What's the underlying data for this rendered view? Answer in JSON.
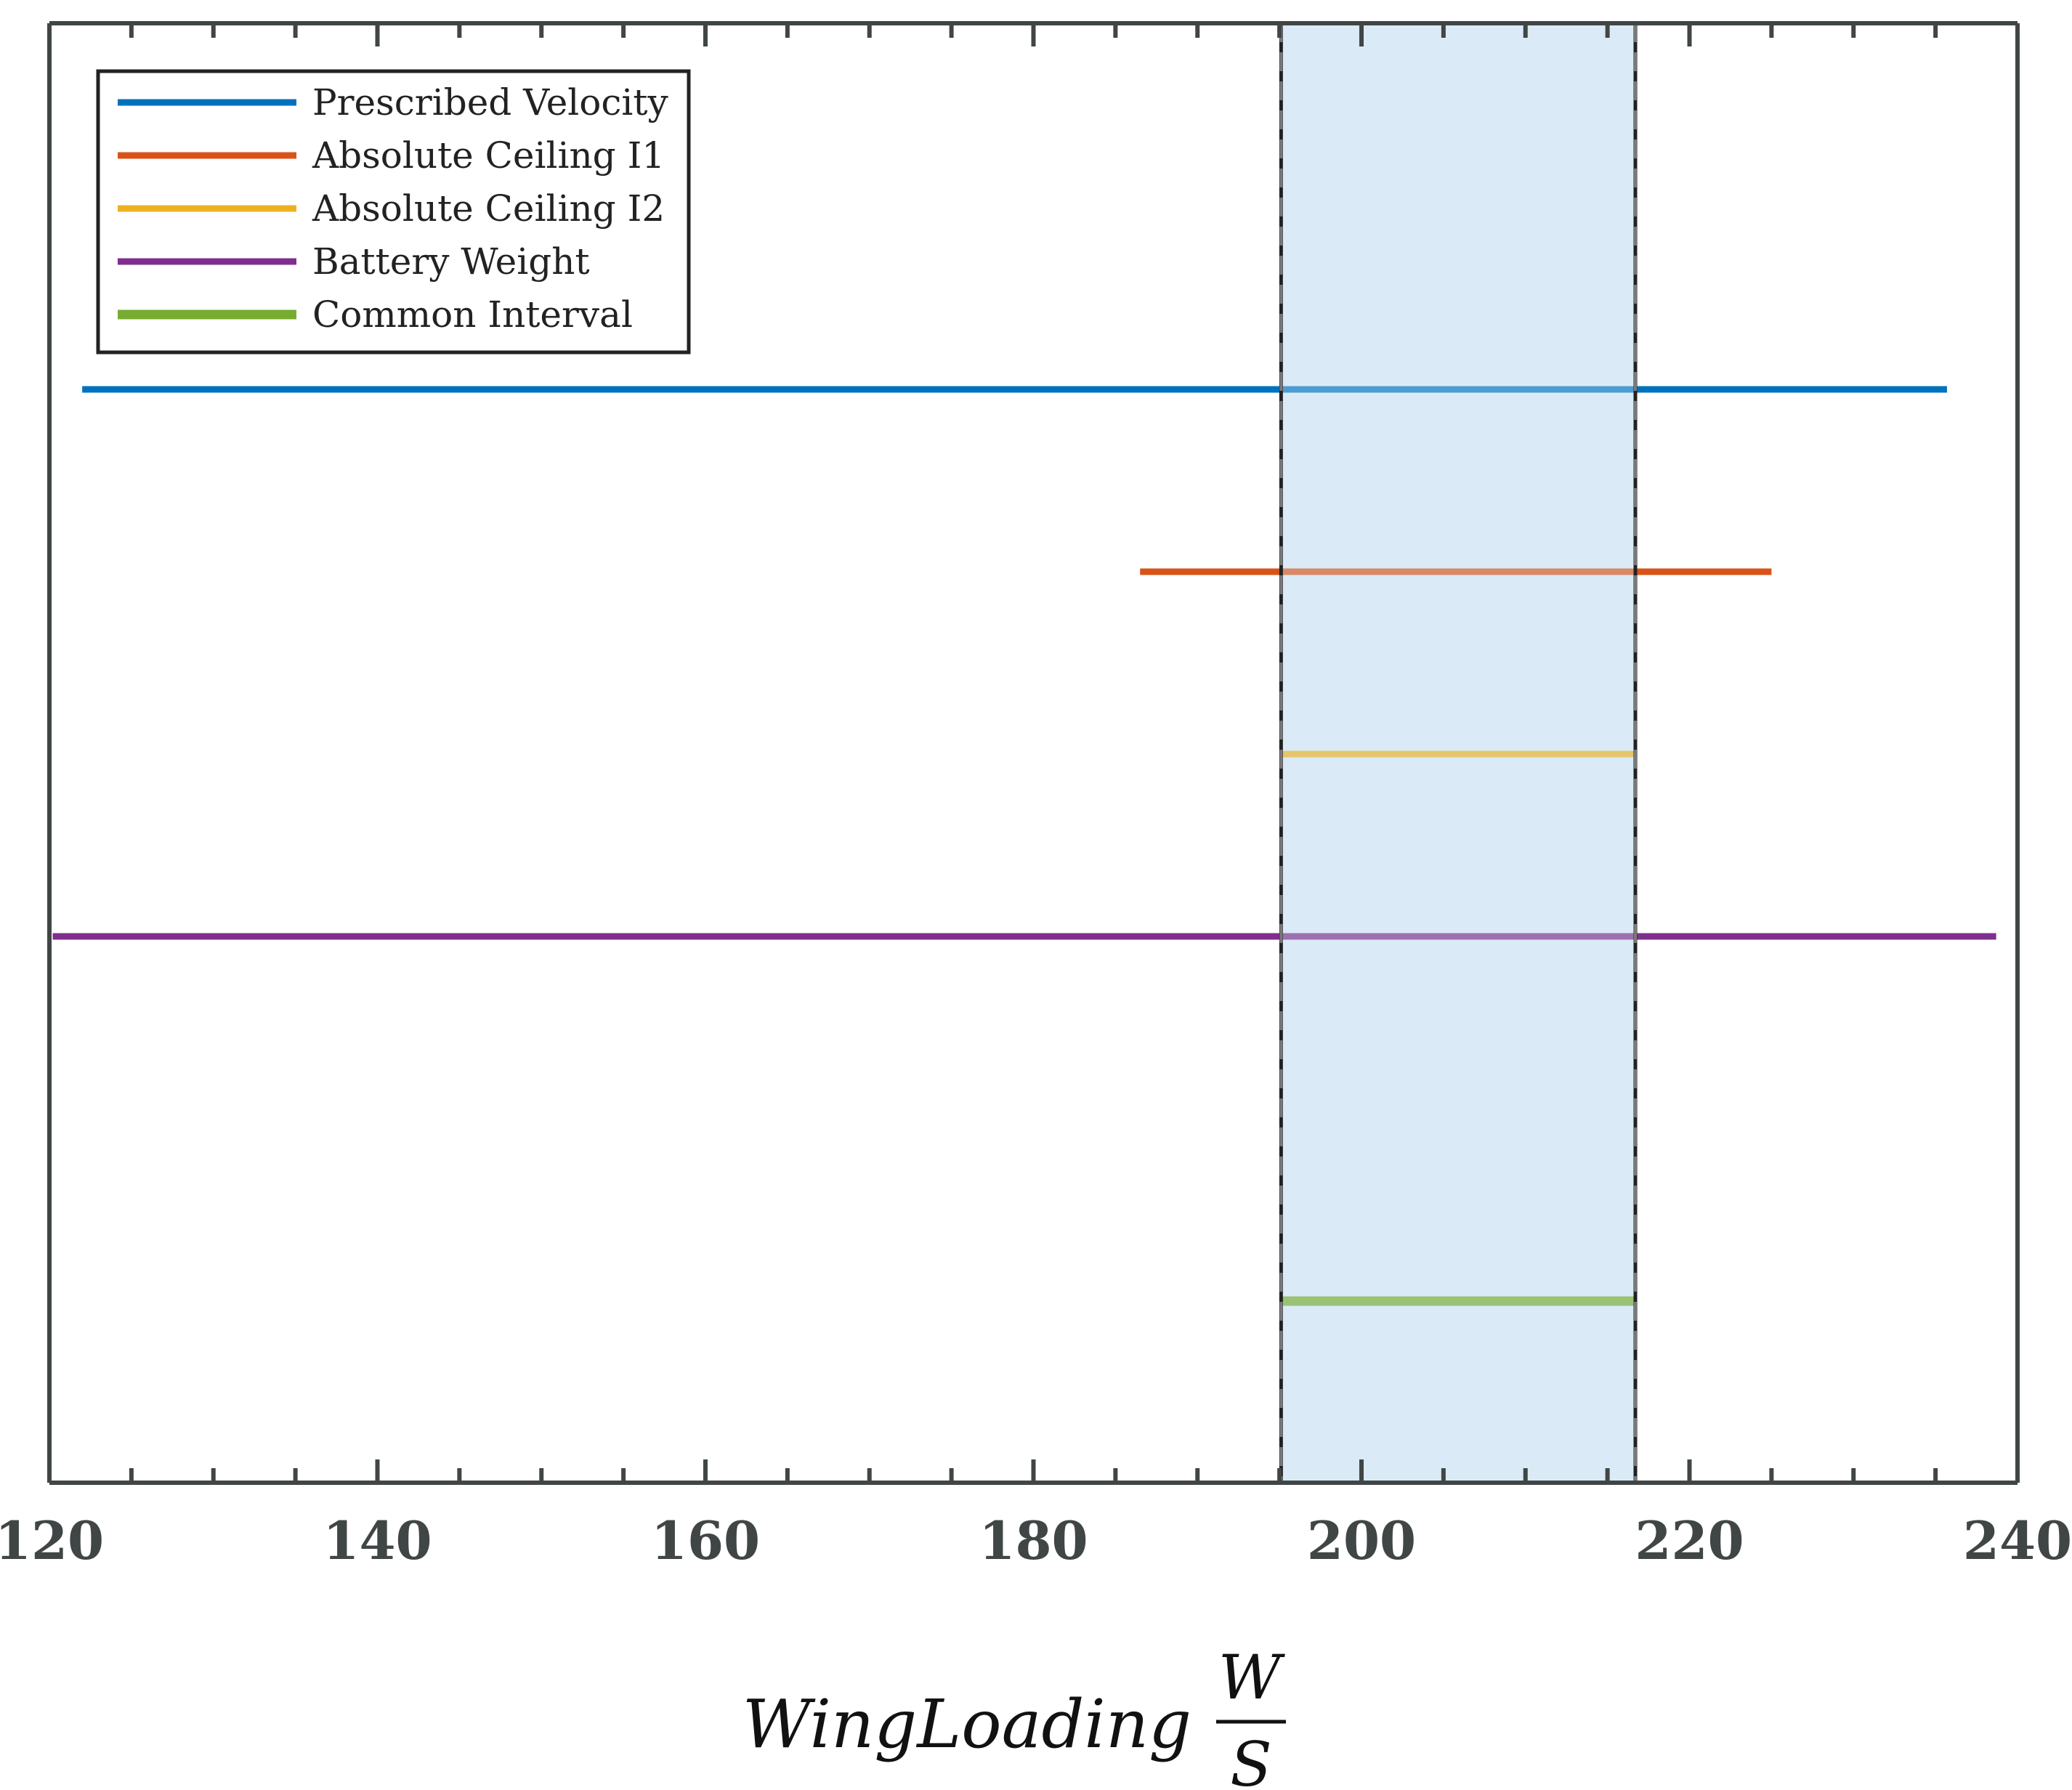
{
  "chart_data": {
    "type": "interval",
    "xlim": [
      120,
      240
    ],
    "x_ticks": [
      120,
      140,
      160,
      180,
      200,
      220,
      240
    ],
    "xlabel": {
      "text": "WingLoading",
      "numerator": "W",
      "denominator": "S"
    },
    "grid": false,
    "legend_location": "top-left",
    "series": [
      {
        "name": "Prescribed Velocity",
        "color": "#0072BD",
        "x": [
          122,
          235.7
        ]
      },
      {
        "name": "Absolute Ceiling I1",
        "color": "#D95319",
        "x": [
          186.5,
          225
        ]
      },
      {
        "name": "Absolute Ceiling I2",
        "color": "#EDB120",
        "x": [
          195.1,
          216.7
        ]
      },
      {
        "name": "Battery Weight",
        "color": "#7E2F8E",
        "x": [
          120.2,
          238.7
        ]
      },
      {
        "name": "Common Interval",
        "color": "#77AC30",
        "x": [
          195.1,
          216.7
        ]
      }
    ],
    "highlight_region": {
      "x": [
        195.1,
        216.7
      ],
      "fill": "#DAEBF7",
      "edge": "#222222"
    }
  }
}
